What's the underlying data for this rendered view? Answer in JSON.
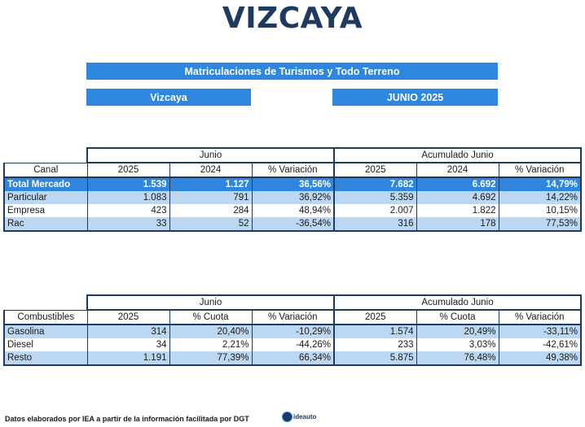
{
  "title": "VIZCAYA",
  "header": {
    "subtitle": "Matriculaciones de Turismos y Todo Terreno",
    "region": "Vizcaya",
    "period": "JUNIO 2025"
  },
  "table1": {
    "group_left": "Junio",
    "group_right": "Acumulado Junio",
    "columns": [
      "Canal",
      "2025",
      "2024",
      "% Variación",
      "2025",
      "2024",
      "% Variación"
    ],
    "rows": [
      [
        "Total Mercado",
        "1.539",
        "1.127",
        "36,56%",
        "7.682",
        "6.692",
        "14,79%"
      ],
      [
        "Particular",
        "1.083",
        "791",
        "36,92%",
        "5.359",
        "4.692",
        "14,22%"
      ],
      [
        "Empresa",
        "423",
        "284",
        "48,94%",
        "2.007",
        "1.822",
        "10,15%"
      ],
      [
        "Rac",
        "33",
        "52",
        "-36,54%",
        "316",
        "178",
        "77,53%"
      ]
    ]
  },
  "table2": {
    "group_left": "Junio",
    "group_right": "Acumulado Junio",
    "columns": [
      "Combustibles",
      "2025",
      "% Cuota",
      "% Variación",
      "2025",
      "% Cuota",
      "% Variación"
    ],
    "rows": [
      [
        "Gasolina",
        "314",
        "20,40%",
        "-10,29%",
        "1.574",
        "20,49%",
        "-33,11%"
      ],
      [
        "Diesel",
        "34",
        "2,21%",
        "-44,26%",
        "233",
        "3,03%",
        "-42,61%"
      ],
      [
        "Resto",
        "1.191",
        "77,39%",
        "66,34%",
        "5.875",
        "76,48%",
        "49,38%"
      ]
    ]
  },
  "footer": {
    "source": "Datos elaborados por IEA a partir de la información facilitada por DGT",
    "logo_text": "ideauto"
  },
  "colors": {
    "accent": "#2e86de",
    "navy": "#1f3a60",
    "light_row": "#bcd7f2"
  }
}
